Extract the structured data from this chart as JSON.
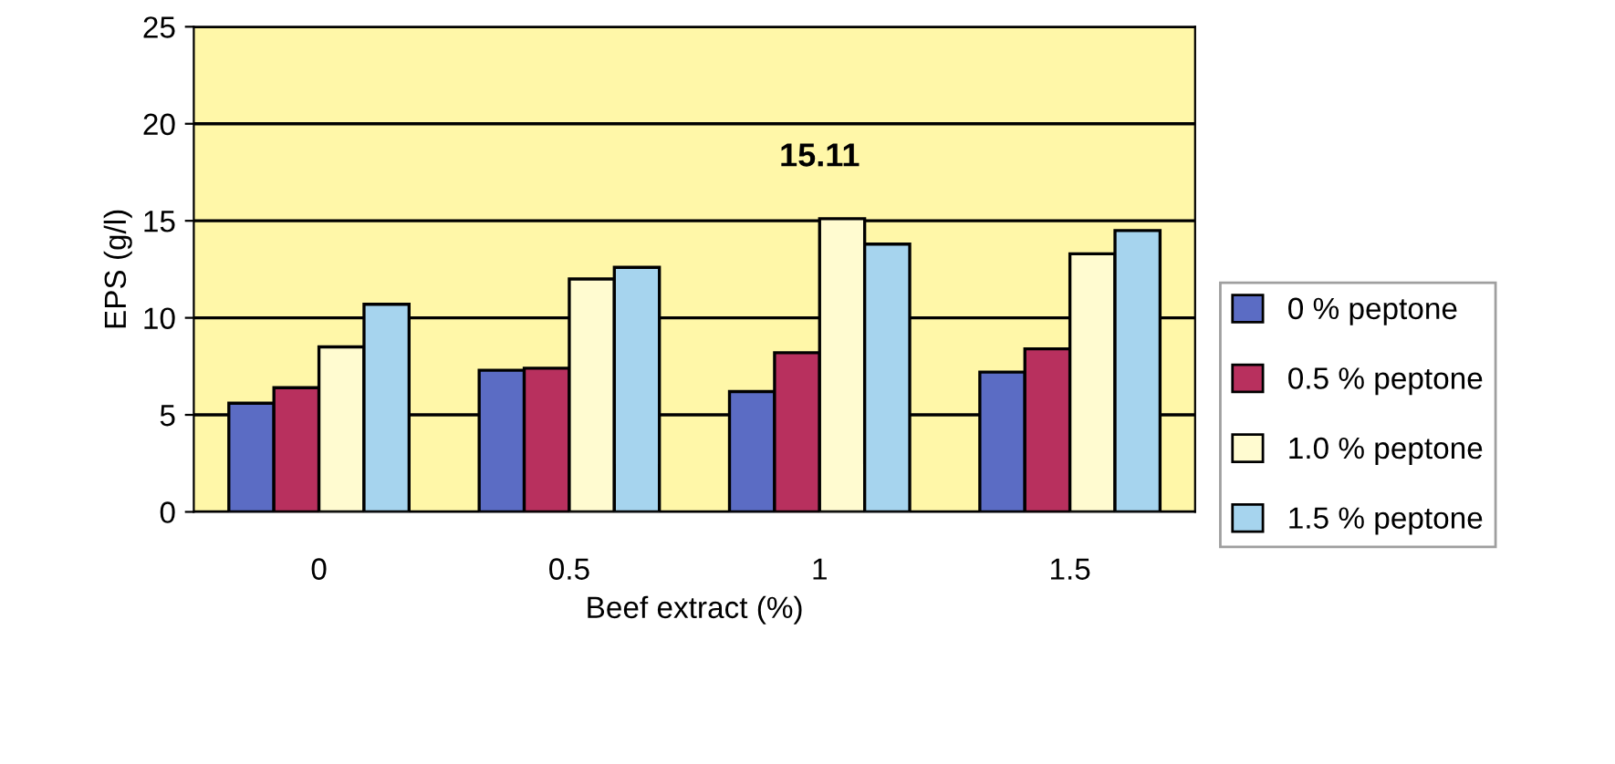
{
  "chart_data": {
    "type": "bar",
    "xlabel": "Beef extract (%)",
    "ylabel": "EPS (g/l)",
    "categories": [
      "0",
      "0.5",
      "1",
      "1.5"
    ],
    "series": [
      {
        "name": "0 % peptone",
        "color": "#5b6cc4",
        "values": [
          5.6,
          7.3,
          6.2,
          7.2
        ]
      },
      {
        "name": "0.5 % peptone",
        "color": "#b8305e",
        "values": [
          6.4,
          7.4,
          8.2,
          8.4
        ]
      },
      {
        "name": "1.0 % peptone",
        "color": "#fffbd0",
        "values": [
          8.5,
          12.0,
          15.11,
          13.3
        ]
      },
      {
        "name": "1.5 % peptone",
        "color": "#a6d4ee",
        "values": [
          10.7,
          12.6,
          13.8,
          14.5
        ]
      }
    ],
    "annotations": [
      {
        "text": "15.11",
        "x": "1",
        "y": 15.11
      }
    ],
    "ylim": [
      0,
      25
    ],
    "yticks": [
      0,
      5,
      10,
      15,
      20,
      25
    ],
    "grid": "y",
    "legend": "right"
  }
}
